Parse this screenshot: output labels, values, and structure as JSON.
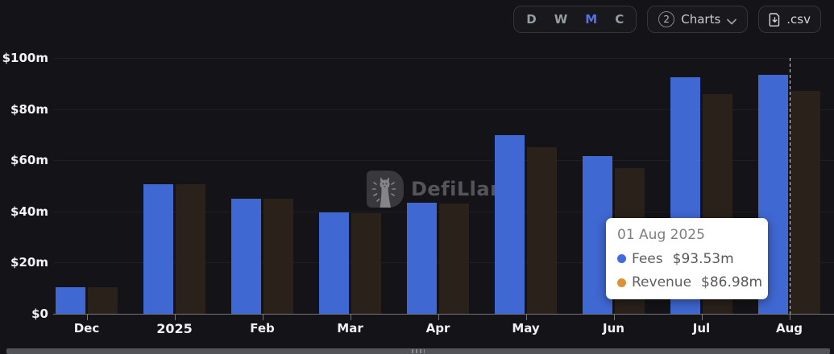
{
  "toolbar": {
    "periods": [
      {
        "label": "D",
        "active": false
      },
      {
        "label": "W",
        "active": false
      },
      {
        "label": "M",
        "active": true
      },
      {
        "label": "C",
        "active": false
      }
    ],
    "active_period_color": "#5672e8",
    "charts_dropdown": {
      "count": "2",
      "label": "Charts"
    },
    "csv_label": ".csv"
  },
  "watermark": {
    "label": "DefiLlama"
  },
  "tooltip": {
    "date": "01 Aug 2025",
    "rows": [
      {
        "label": "Fees",
        "value": "$93.53m",
        "dot_color": "#3f6ae0"
      },
      {
        "label": "Revenue",
        "value": "$86.98m",
        "dot_color": "#dd9136"
      }
    ]
  },
  "chart_data": {
    "type": "bar",
    "categories": [
      "Dec",
      "2025",
      "Feb",
      "Mar",
      "Apr",
      "May",
      "Jun",
      "Jul",
      "Aug"
    ],
    "emphasized_category": "2025",
    "series": [
      {
        "name": "Fees",
        "color": "#4068d2",
        "values": [
          10.4,
          50.7,
          45.0,
          39.5,
          43.5,
          69.9,
          61.7,
          92.6,
          93.53
        ]
      },
      {
        "name": "Revenue",
        "color": "#2a211a",
        "values": [
          10.3,
          50.6,
          44.9,
          39.3,
          43.0,
          65.1,
          56.9,
          85.9,
          86.98
        ]
      }
    ],
    "unit": "USD millions",
    "ylim": [
      0,
      100
    ],
    "y_ticks": [
      "$0",
      "$20m",
      "$40m",
      "$60m",
      "$80m",
      "$100m"
    ],
    "grid": true,
    "cursor_category": "Aug",
    "legend_position": "tooltip"
  }
}
